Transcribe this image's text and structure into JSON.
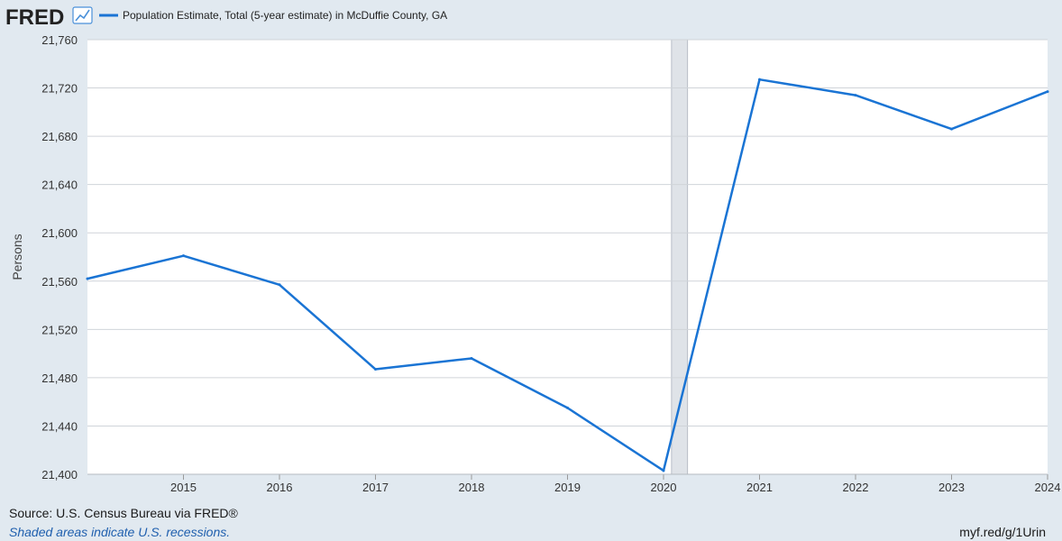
{
  "header": {
    "logo_text": "FRED",
    "logo_icon": "trend-chart-icon"
  },
  "chart_data": {
    "type": "line",
    "series": [
      {
        "name": "Population Estimate, Total (5-year estimate) in McDuffie County, GA",
        "color": "#1a74d4",
        "x": [
          "2014",
          "2015",
          "2016",
          "2017",
          "2018",
          "2019",
          "2020",
          "2021",
          "2022",
          "2023",
          "2024"
        ],
        "values": [
          21562,
          21581,
          21557,
          21487,
          21496,
          21455,
          21403,
          21727,
          21714,
          21686,
          21717
        ]
      }
    ],
    "xlabel": "",
    "ylabel": "Persons",
    "ylim": [
      21400,
      21760
    ],
    "yticks": [
      "21,400",
      "21,440",
      "21,480",
      "21,520",
      "21,560",
      "21,600",
      "21,640",
      "21,680",
      "21,720",
      "21,760"
    ],
    "xlim": [
      "2014",
      "2024"
    ],
    "xticks": [
      "2015",
      "2016",
      "2017",
      "2018",
      "2019",
      "2020",
      "2021",
      "2022",
      "2023",
      "2024"
    ],
    "recessions": [
      {
        "start": "2020-02",
        "end": "2020-04"
      }
    ],
    "recession_color": "#dfe3e8",
    "grid": true,
    "legend_position": "top-left"
  },
  "footer": {
    "source": "Source: U.S. Census Bureau via FRED®",
    "note": "Shaded areas indicate U.S. recessions.",
    "url": "myf.red/g/1Urin"
  }
}
